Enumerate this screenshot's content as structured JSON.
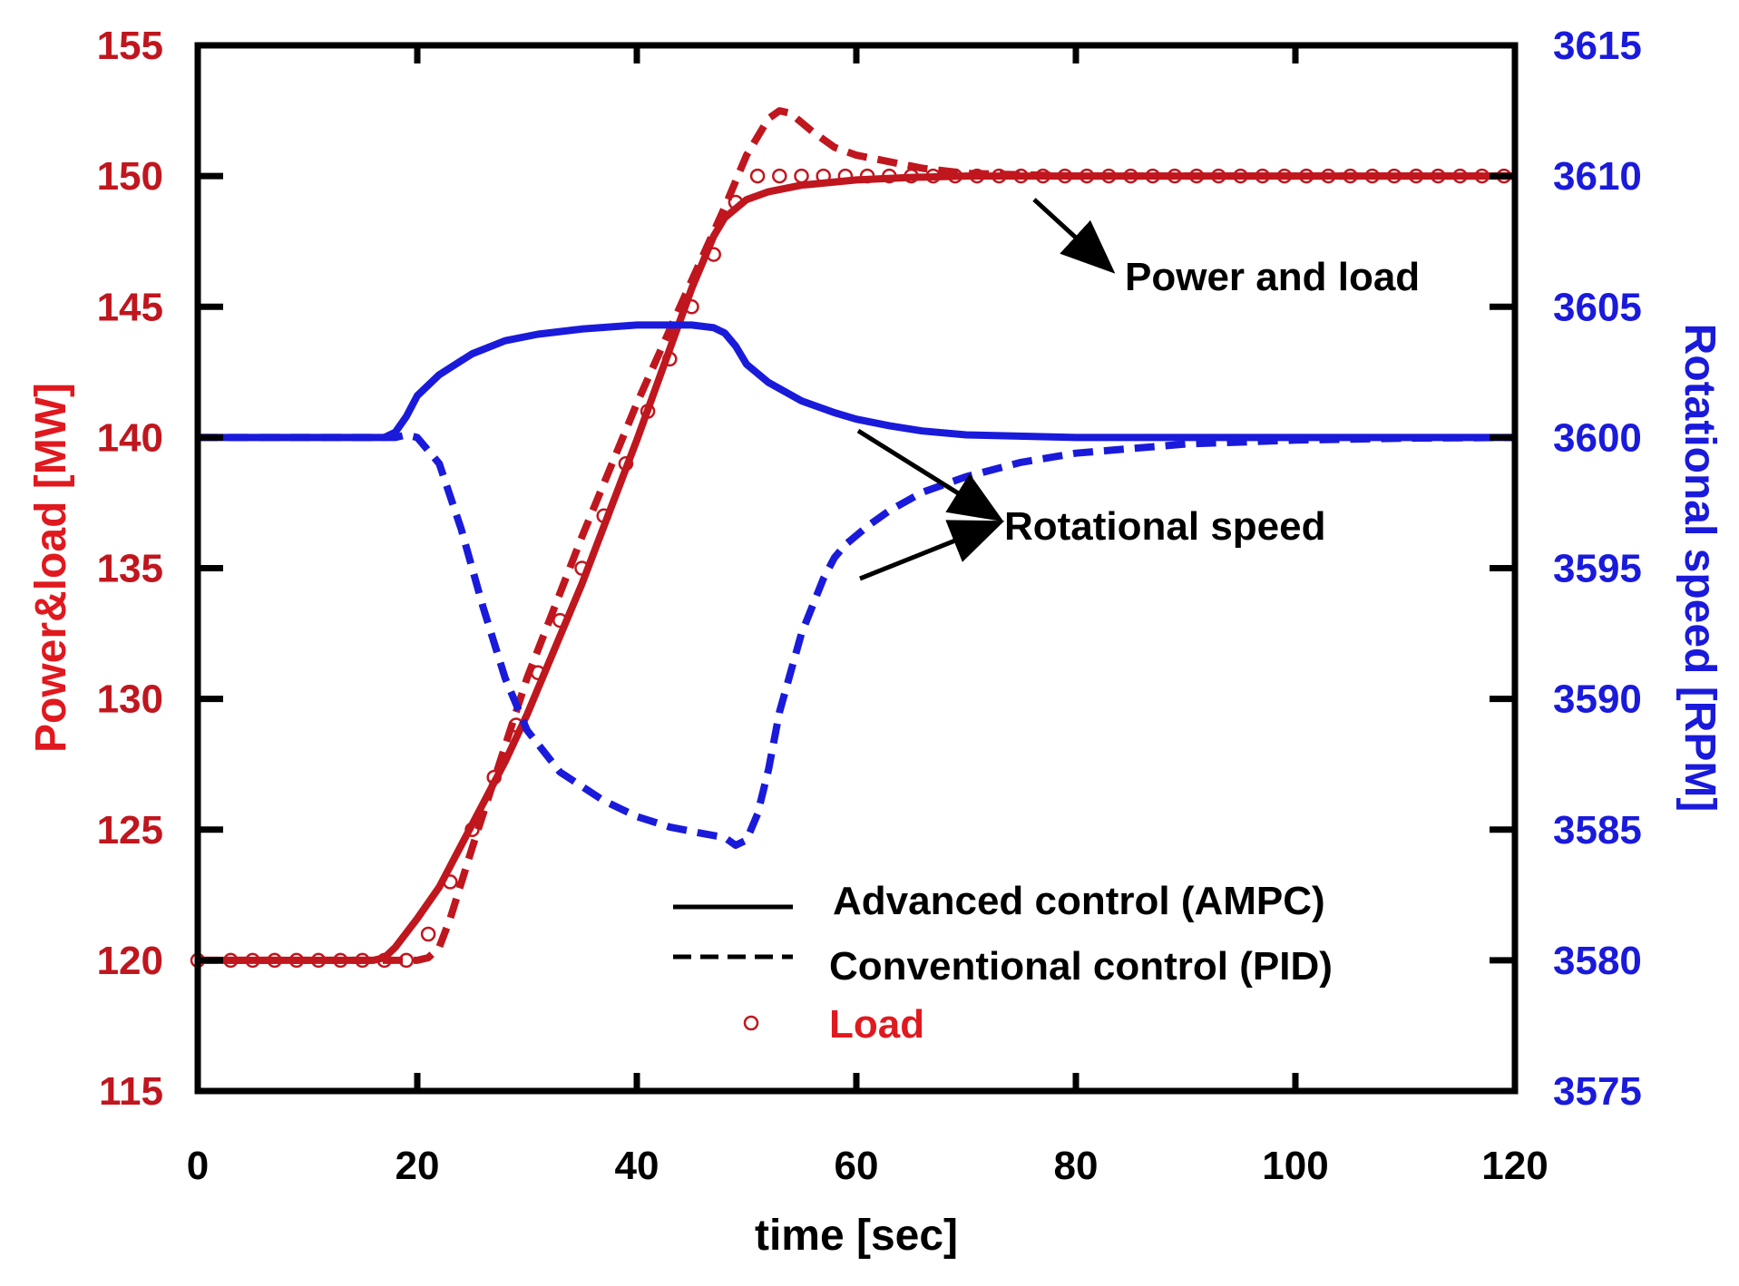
{
  "chart_data": {
    "type": "line",
    "title": "",
    "xlabel": "time [sec]",
    "ylabel_left": "Power&load [MW]",
    "ylabel_right": "Rotational speed [RPM]",
    "xlim": [
      0,
      120
    ],
    "ylim_left": [
      115,
      155
    ],
    "ylim_right": [
      3575,
      3615
    ],
    "x_ticks": [
      "0",
      "20",
      "40",
      "60",
      "80",
      "100",
      "120"
    ],
    "y_left_ticks": [
      "115",
      "120",
      "125",
      "130",
      "135",
      "140",
      "145",
      "150",
      "155"
    ],
    "y_right_ticks": [
      "3575",
      "3580",
      "3585",
      "3590",
      "3595",
      "3600",
      "3605",
      "3610",
      "3615"
    ],
    "grid": false,
    "colors": {
      "power": "#c0161e",
      "speed": "#1a1adb",
      "axis_left": "#c0161e",
      "axis_right": "#1a1adb",
      "frame": "#000000"
    },
    "series": [
      {
        "name": "Power (AMPC)",
        "axis": "left",
        "style": "solid",
        "color": "#c0161e",
        "x": [
          0,
          10,
          16,
          17,
          18,
          20,
          22,
          25,
          28,
          30,
          35,
          40,
          45,
          47,
          48,
          50,
          52,
          55,
          60,
          65,
          70,
          80,
          100,
          120
        ],
        "y": [
          120,
          120,
          120,
          120.1,
          120.5,
          121.6,
          122.8,
          125.2,
          127.6,
          129.4,
          134.4,
          139.9,
          145.7,
          147.7,
          148.4,
          149.1,
          149.4,
          149.65,
          149.85,
          149.95,
          150,
          150,
          150,
          150
        ]
      },
      {
        "name": "Power (PID)",
        "axis": "left",
        "style": "dashed",
        "color": "#c0161e",
        "x": [
          0,
          18,
          20,
          21,
          22,
          23,
          25,
          27,
          30,
          35,
          40,
          45,
          48,
          50,
          52,
          53,
          54,
          56,
          58,
          60,
          63,
          66,
          70,
          80,
          100,
          120
        ],
        "y": [
          120,
          120,
          120,
          120.1,
          120.5,
          121.6,
          124.3,
          126.9,
          130.8,
          136.2,
          141.3,
          146,
          148.8,
          150.8,
          152.2,
          152.5,
          152.4,
          151.7,
          151.1,
          150.8,
          150.55,
          150.3,
          150.1,
          150,
          150,
          150
        ]
      },
      {
        "name": "Load",
        "axis": "left",
        "style": "markers",
        "color": "#c0161e",
        "x": [
          0,
          3,
          5,
          7,
          9,
          11,
          13,
          15,
          17,
          19,
          21,
          23,
          25,
          27,
          29,
          31,
          33,
          35,
          37,
          39,
          41,
          43,
          45,
          47,
          49,
          51,
          53,
          55,
          57,
          59,
          61,
          63,
          65,
          67,
          69,
          71,
          73,
          75,
          77,
          79,
          81,
          83,
          85,
          87,
          89,
          91,
          93,
          95,
          97,
          99,
          101,
          103,
          105,
          107,
          109,
          111,
          113,
          115,
          117,
          119
        ],
        "y": [
          120,
          120,
          120,
          120,
          120,
          120,
          120,
          120,
          120,
          120,
          121,
          123,
          125,
          127,
          129,
          131,
          133,
          135,
          137,
          139,
          141,
          143,
          145,
          147,
          149,
          150,
          150,
          150,
          150,
          150,
          150,
          150,
          150,
          150,
          150,
          150,
          150,
          150,
          150,
          150,
          150,
          150,
          150,
          150,
          150,
          150,
          150,
          150,
          150,
          150,
          150,
          150,
          150,
          150,
          150,
          150,
          150,
          150,
          150,
          150
        ]
      },
      {
        "name": "Rotational speed (AMPC)",
        "axis": "right",
        "style": "solid",
        "color": "#1a1adb",
        "x": [
          0,
          10,
          17,
          18,
          19,
          20,
          22,
          25,
          28,
          31,
          35,
          40,
          45,
          47,
          48,
          49,
          50,
          52,
          55,
          58,
          60,
          63,
          66,
          70,
          80,
          100,
          120
        ],
        "y": [
          3600,
          3600,
          3600,
          3600.2,
          3600.8,
          3601.6,
          3602.4,
          3603.2,
          3603.7,
          3603.95,
          3604.15,
          3604.3,
          3604.3,
          3604.2,
          3604,
          3603.5,
          3602.8,
          3602.1,
          3601.4,
          3600.95,
          3600.7,
          3600.45,
          3600.25,
          3600.1,
          3600,
          3600,
          3600
        ]
      },
      {
        "name": "Rotational speed (PID)",
        "axis": "right",
        "style": "dashed",
        "color": "#1a1adb",
        "x": [
          0,
          10,
          18,
          19,
          20,
          22,
          24,
          26,
          28,
          30,
          33,
          37,
          40,
          43,
          46,
          48,
          49,
          50,
          51,
          52,
          53,
          55,
          57,
          58,
          59,
          61,
          63,
          66,
          70,
          75,
          80,
          90,
          100,
          110,
          120
        ],
        "y": [
          3600,
          3600,
          3600,
          3600.1,
          3600,
          3599,
          3596.5,
          3593.5,
          3590.8,
          3588.8,
          3587.2,
          3586.1,
          3585.5,
          3585.1,
          3584.85,
          3584.7,
          3584.4,
          3584.6,
          3585.6,
          3587.3,
          3589.5,
          3592.5,
          3594.6,
          3595.4,
          3595.9,
          3596.6,
          3597.2,
          3597.9,
          3598.5,
          3599.05,
          3599.4,
          3599.75,
          3599.9,
          3599.97,
          3600
        ]
      }
    ],
    "annotations": [
      {
        "text": "Power and load"
      },
      {
        "text": "Rotational speed"
      }
    ],
    "legend": {
      "placement": "bottom-center",
      "entries": [
        {
          "label": "Advanced control (AMPC)",
          "style": "solid",
          "color": "#000000"
        },
        {
          "label": "Conventional control (PID)",
          "style": "dashed",
          "color": "#000000"
        },
        {
          "label": "Load",
          "style": "marker",
          "color": "#c0161e"
        }
      ]
    }
  }
}
